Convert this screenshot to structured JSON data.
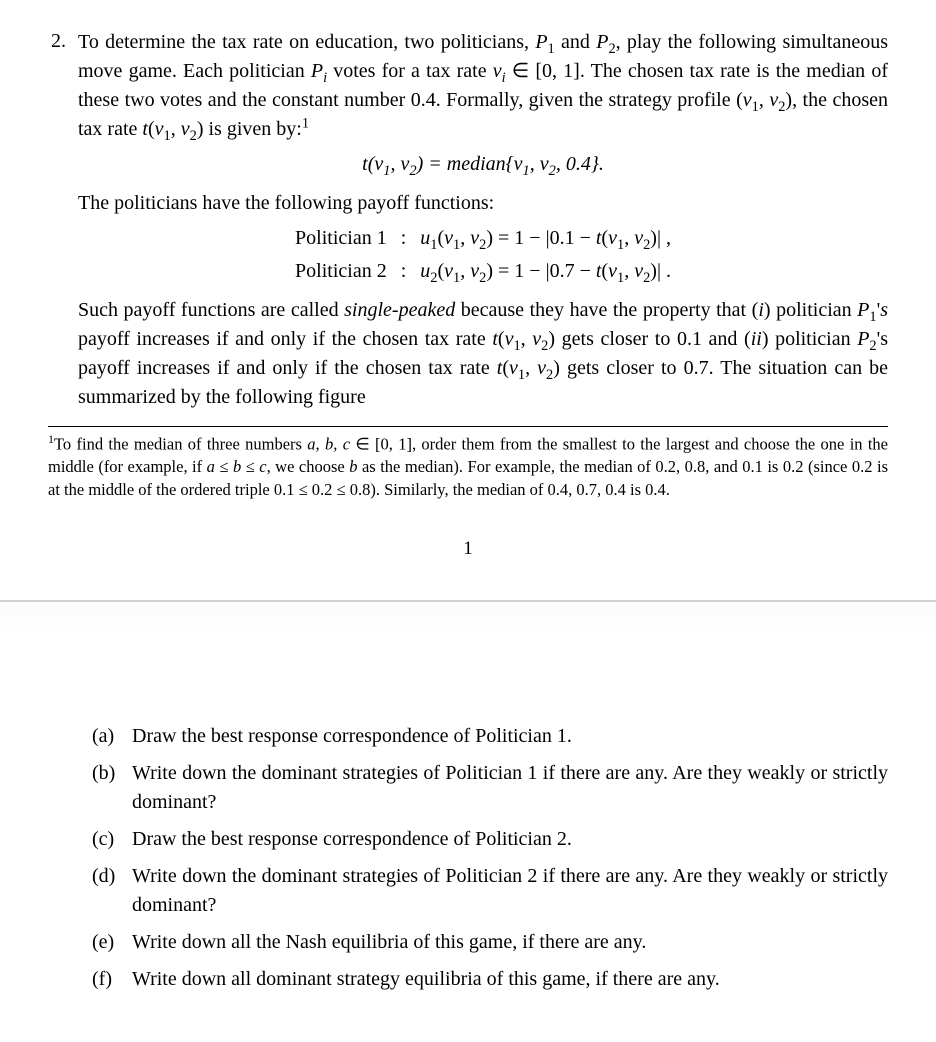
{
  "problem": {
    "number": "2.",
    "intro_html": "To determine the tax rate on education, two politicians, <i class='m'>P</i><sub>1</sub> and <i class='m'>P</i><sub>2</sub>, play the following simultaneous move game. Each politician <i class='m'>P<sub>i</sub></i> votes for a tax rate <i class='m'>v<sub>i</sub></i> ∈ [0, 1]. The chosen tax rate is the median of these two votes and the constant number 0.4. Formally, given the strategy profile (<i class='m'>v</i><sub>1</sub>, <i class='m'>v</i><sub>2</sub>), the chosen tax rate <i class='m'>t</i>(<i class='m'>v</i><sub>1</sub>, <i class='m'>v</i><sub>2</sub>) is given by:<sup>1</sup>",
    "median_eq_html": "<i class='m'>t</i>(<i class='m'>v</i><sub>1</sub>, <i class='m'>v</i><sub>2</sub>) = <i class='m'>median</i>{<i class='m'>v</i><sub>1</sub>, <i class='m'>v</i><sub>2</sub>, 0.4}.",
    "payoff_intro": "The politicians have the following payoff functions:",
    "payoff_rows": [
      {
        "label": "Politician 1",
        "expr_html": "<i class='m'>u</i><sub>1</sub>(<i class='m'>v</i><sub>1</sub>, <i class='m'>v</i><sub>2</sub>) = 1 − |0.1 − <i class='m'>t</i>(<i class='m'>v</i><sub>1</sub>, <i class='m'>v</i><sub>2</sub>)| ,"
      },
      {
        "label": "Politician 2",
        "expr_html": "<i class='m'>u</i><sub>2</sub>(<i class='m'>v</i><sub>1</sub>, <i class='m'>v</i><sub>2</sub>) = 1 − |0.7 − <i class='m'>t</i>(<i class='m'>v</i><sub>1</sub>, <i class='m'>v</i><sub>2</sub>)| ."
      }
    ],
    "single_peaked_html": "Such payoff functions are called <i>single-peaked</i> because they have the property that (<i class='m'>i</i>) politician <i class='m'>P</i><sub>1</sub>'<i class='m'>s</i> payoff increases if and only if the chosen tax rate <i class='m'>t</i>(<i class='m'>v</i><sub>1</sub>, <i class='m'>v</i><sub>2</sub>) gets closer to 0.1 and (<i class='m'>ii</i>) politician <i class='m'>P</i><sub>2</sub>'s payoff increases if and only if the chosen tax rate <i class='m'>t</i>(<i class='m'>v</i><sub>1</sub>, <i class='m'>v</i><sub>2</sub>) gets closer to 0.7. The situation can be summarized by the following figure"
  },
  "footnote_html": "<span class='sup'>1</span>To find the median of three numbers <i class='m'>a</i>, <i class='m'>b</i>, <i class='m'>c</i> ∈ [0, 1], order them from the smallest to the largest and choose the one in the middle (for example, if <i class='m'>a</i> ≤ <i class='m'>b</i> ≤ <i class='m'>c</i>, we choose <i class='m'>b</i> as the median). For example, the median of 0.2, 0.8, and 0.1 is 0.2 (since 0.2 is at the middle of the ordered triple 0.1 ≤ 0.2 ≤ 0.8). Similarly, the median of 0.4, 0.7, 0.4 is 0.4.",
  "page_number": "1",
  "subparts": [
    {
      "label": "(a)",
      "text": "Draw the best response correspondence of Politician 1."
    },
    {
      "label": "(b)",
      "text": "Write down the dominant strategies of Politician 1 if there are any. Are they weakly or strictly dominant?"
    },
    {
      "label": "(c)",
      "text": "Draw the best response correspondence of Politician 2."
    },
    {
      "label": "(d)",
      "text": "Write down the dominant strategies of Politician 2 if there are any. Are they weakly or strictly dominant?"
    },
    {
      "label": "(e)",
      "text": "Write down all the Nash equilibria of this game, if there are any."
    },
    {
      "label": "(f)",
      "text": "Write down all dominant strategy equilibria of this game, if there are any."
    }
  ],
  "colors": {
    "text": "#000000",
    "background": "#ffffff",
    "divider": "#d0d0d0"
  },
  "fonts": {
    "body_pt": 20,
    "footnote_pt": 16.5,
    "family": "Times New Roman"
  }
}
